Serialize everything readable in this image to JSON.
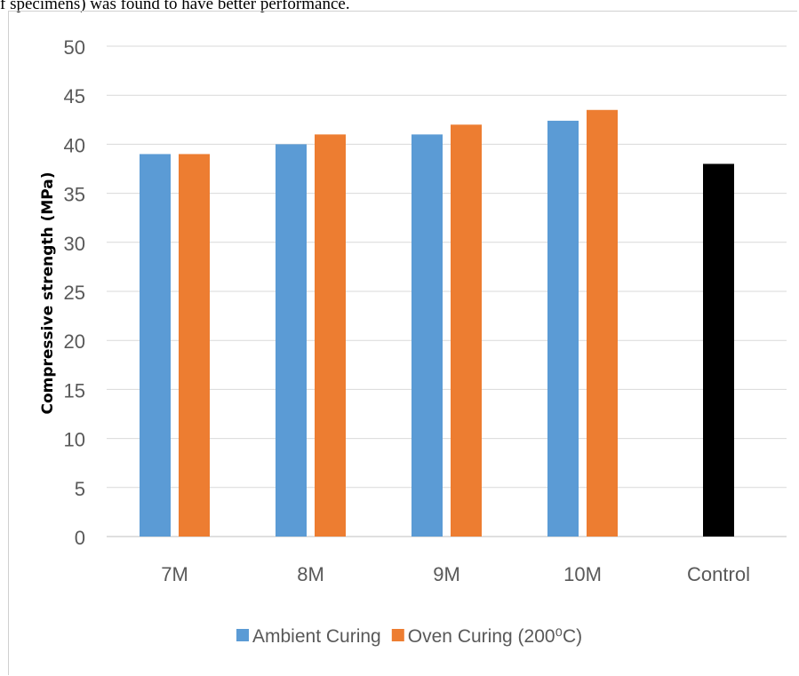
{
  "caption_fragment": "f specimens) was found to have better performance.",
  "chart_data": {
    "type": "bar",
    "categories": [
      "7M",
      "8M",
      "9M",
      "10M",
      "Control"
    ],
    "series": [
      {
        "name": "Ambient Curing",
        "color": "#5b9bd5",
        "values": [
          39,
          40,
          41,
          42.4,
          null
        ]
      },
      {
        "name": "Oven Curing (200⁰C)",
        "color": "#ed7d31",
        "values": [
          39,
          41,
          42,
          43.5,
          null
        ]
      },
      {
        "name": "",
        "color": "#000000",
        "values": [
          null,
          null,
          null,
          null,
          38
        ]
      }
    ],
    "ylabel": "Compressive strength (MPa)",
    "xlabel": "",
    "ylim": [
      0,
      50
    ],
    "yticks": [
      0,
      5,
      10,
      15,
      20,
      25,
      30,
      35,
      40,
      45,
      50
    ],
    "grid": true,
    "legend_position": "bottom"
  }
}
